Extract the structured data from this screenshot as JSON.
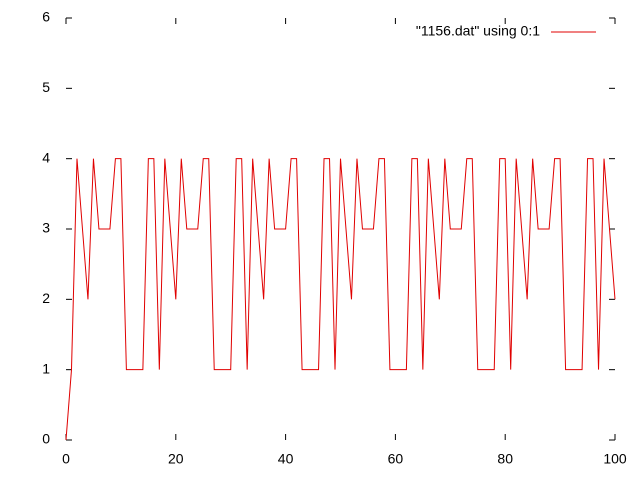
{
  "chart_data": {
    "type": "line",
    "x": [
      0,
      1,
      2,
      3,
      4,
      5,
      6,
      7,
      8,
      9,
      10,
      11,
      12,
      13,
      14,
      15,
      16,
      17,
      18,
      19,
      20,
      21,
      22,
      23,
      24,
      25,
      26,
      27,
      28,
      29,
      30,
      31,
      32,
      33,
      34,
      35,
      36,
      37,
      38,
      39,
      40,
      41,
      42,
      43,
      44,
      45,
      46,
      47,
      48,
      49,
      50,
      51,
      52,
      53,
      54,
      55,
      56,
      57,
      58,
      59,
      60,
      61,
      62,
      63,
      64,
      65,
      66,
      67,
      68,
      69,
      70,
      71,
      72,
      73,
      74,
      75,
      76,
      77,
      78,
      79,
      80,
      81,
      82,
      83,
      84,
      85,
      86,
      87,
      88,
      89,
      90,
      91,
      92,
      93,
      94,
      95,
      96,
      97,
      98,
      99,
      100
    ],
    "series": [
      {
        "name": "\"1156.dat\" using 0:1",
        "color": "#e00000",
        "values": [
          0,
          1,
          4,
          3,
          2,
          4,
          3,
          3,
          3,
          4,
          4,
          1,
          1,
          1,
          1,
          4,
          4,
          1,
          4,
          3,
          2,
          4,
          3,
          3,
          3,
          4,
          4,
          1,
          1,
          1,
          1,
          4,
          4,
          1,
          4,
          3,
          2,
          4,
          3,
          3,
          3,
          4,
          4,
          1,
          1,
          1,
          1,
          4,
          4,
          1,
          4,
          3,
          2,
          4,
          3,
          3,
          3,
          4,
          4,
          1,
          1,
          1,
          1,
          4,
          4,
          1,
          4,
          3,
          2,
          4,
          3,
          3,
          3,
          4,
          4,
          1,
          1,
          1,
          1,
          4,
          4,
          1,
          4,
          3,
          2,
          4,
          3,
          3,
          3,
          4,
          4,
          1,
          1,
          1,
          1,
          4,
          4,
          1,
          4,
          3,
          2
        ]
      }
    ],
    "xlim": [
      0,
      100
    ],
    "xticks": [
      0,
      20,
      40,
      60,
      80,
      100
    ],
    "ylim": [
      0,
      6
    ],
    "yticks": [
      0,
      1,
      2,
      3,
      4,
      5,
      6
    ],
    "legend": "top-right"
  }
}
